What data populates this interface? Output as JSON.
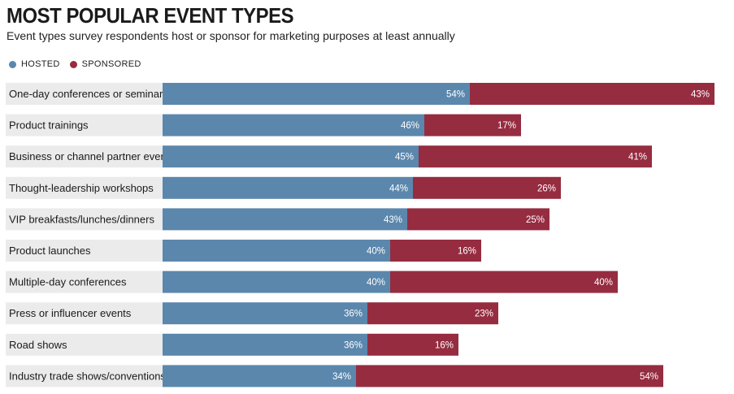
{
  "chart_data": {
    "type": "bar",
    "orientation": "horizontal",
    "stacked": true,
    "title": "MOST POPULAR EVENT TYPES",
    "subtitle": "Event types survey respondents host or sponsor for marketing purposes at least annually",
    "categories": [
      "One-day conferences or seminars",
      "Product trainings",
      "Business or channel partner events",
      "Thought-leadership workshops",
      "VIP breakfasts/lunches/dinners",
      "Product launches",
      "Multiple-day conferences",
      "Press or influencer events",
      "Road shows",
      "Industry trade shows/conventions"
    ],
    "series": [
      {
        "name": "HOSTED",
        "color": "#5b87ad",
        "values": [
          54,
          46,
          45,
          44,
          43,
          40,
          40,
          36,
          36,
          34
        ]
      },
      {
        "name": "SPONSORED",
        "color": "#962c40",
        "values": [
          43,
          17,
          41,
          26,
          25,
          16,
          40,
          23,
          16,
          54
        ]
      }
    ],
    "value_suffix": "%",
    "legend_position": "top-left",
    "grid": false
  }
}
